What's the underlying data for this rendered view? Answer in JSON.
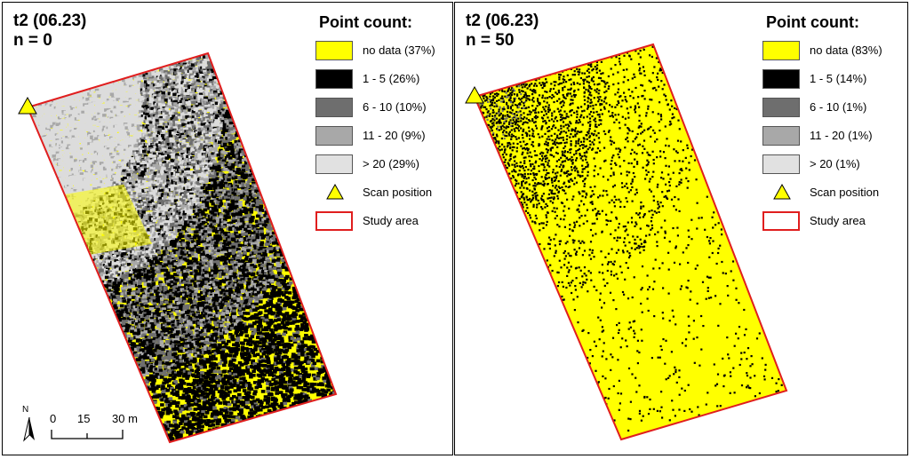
{
  "panels": [
    {
      "title_line1": "t2 (06.23)",
      "title_line2": "n = 0",
      "legend": {
        "title": "Point count:",
        "entries": [
          {
            "label": "no data (37%)",
            "color": "#ffff00"
          },
          {
            "label": "1 - 5 (26%)",
            "color": "#000000"
          },
          {
            "label": "6 - 10 (10%)",
            "color": "#6e6e6e"
          },
          {
            "label": "11 - 20 (9%)",
            "color": "#a8a8a8"
          },
          {
            "label": "> 20 (29%)",
            "color": "#e1e1e1"
          }
        ],
        "scan_label": "Scan position",
        "study_label": "Study area"
      },
      "shares": {
        "no_data": 37,
        "c1_5": 26,
        "c6_10": 10,
        "c11_20": 9,
        "c20plus": 29
      }
    },
    {
      "title_line1": "t2 (06.23)",
      "title_line2": "n = 50",
      "legend": {
        "title": "Point count:",
        "entries": [
          {
            "label": "no data (83%)",
            "color": "#ffff00"
          },
          {
            "label": "1 - 5 (14%)",
            "color": "#000000"
          },
          {
            "label": "6 - 10 (1%)",
            "color": "#6e6e6e"
          },
          {
            "label": "11 - 20 (1%)",
            "color": "#a8a8a8"
          },
          {
            "label": "> 20 (1%)",
            "color": "#e1e1e1"
          }
        ],
        "scan_label": "Scan position",
        "study_label": "Study area"
      },
      "shares": {
        "no_data": 83,
        "c1_5": 14,
        "c6_10": 1,
        "c11_20": 1,
        "c20plus": 1
      }
    }
  ],
  "scale": {
    "north_label": "N",
    "ticks": [
      "0",
      "15",
      "30 m"
    ]
  },
  "colors": {
    "study_area": "#e01e1e",
    "scan_marker": "#ffff00",
    "no_data": "#ffff00"
  }
}
